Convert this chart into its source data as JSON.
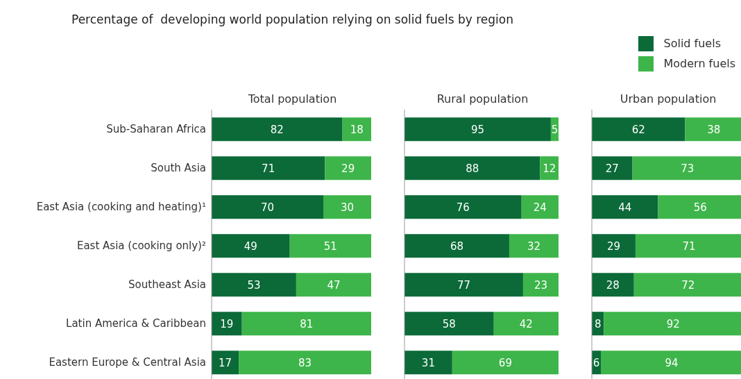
{
  "chart_data": [
    {
      "type": "bar",
      "orientation": "horizontal",
      "stacked": true,
      "title": "Percentage of  developing world population relying on solid fuels by region",
      "subtitle": "Total population",
      "categories": [
        "Sub-Saharan Africa",
        "South Asia",
        "East Asia (cooking and heating)¹",
        "East Asia (cooking only)²",
        "Southeast Asia",
        "Latin America & Caribbean",
        "Eastern Europe & Central Asia"
      ],
      "xlim": [
        0,
        100
      ],
      "tick_labels": "y",
      "data_labels": true,
      "series": [
        {
          "color": "#0b6a38",
          "values": [
            82,
            71,
            70,
            49,
            53,
            19,
            17
          ]
        },
        {
          "color": "#3db54a",
          "values": [
            18,
            29,
            30,
            51,
            47,
            81,
            83
          ]
        }
      ]
    },
    {
      "type": "bar",
      "orientation": "horizontal",
      "stacked": true,
      "subtitle": "Rural population",
      "categories": [
        null,
        null,
        null,
        null,
        null,
        null,
        null
      ],
      "xlim": [
        0,
        100
      ],
      "tick_labels": false,
      "data_labels": true,
      "series": [
        {
          "color": "#0b6a38",
          "values": [
            95,
            88,
            76,
            68,
            77,
            58,
            31
          ]
        },
        {
          "color": "#3db54a",
          "values": [
            5,
            12,
            24,
            32,
            23,
            42,
            69
          ]
        }
      ]
    },
    {
      "type": "bar",
      "orientation": "horizontal",
      "stacked": true,
      "subtitle": "Urban population",
      "categories": [
        null,
        null,
        null,
        null,
        null,
        null,
        null
      ],
      "xlim": [
        0,
        100
      ],
      "tick_labels": false,
      "data_labels": true,
      "legend": "top right",
      "series": [
        {
          "name": "Solid fuels",
          "color": "#0b6a38",
          "values": [
            62,
            27,
            44,
            29,
            28,
            8,
            6
          ]
        },
        {
          "name": "Modern fuels",
          "color": "#3db54a",
          "values": [
            38,
            73,
            56,
            71,
            72,
            92,
            94
          ]
        }
      ]
    }
  ]
}
